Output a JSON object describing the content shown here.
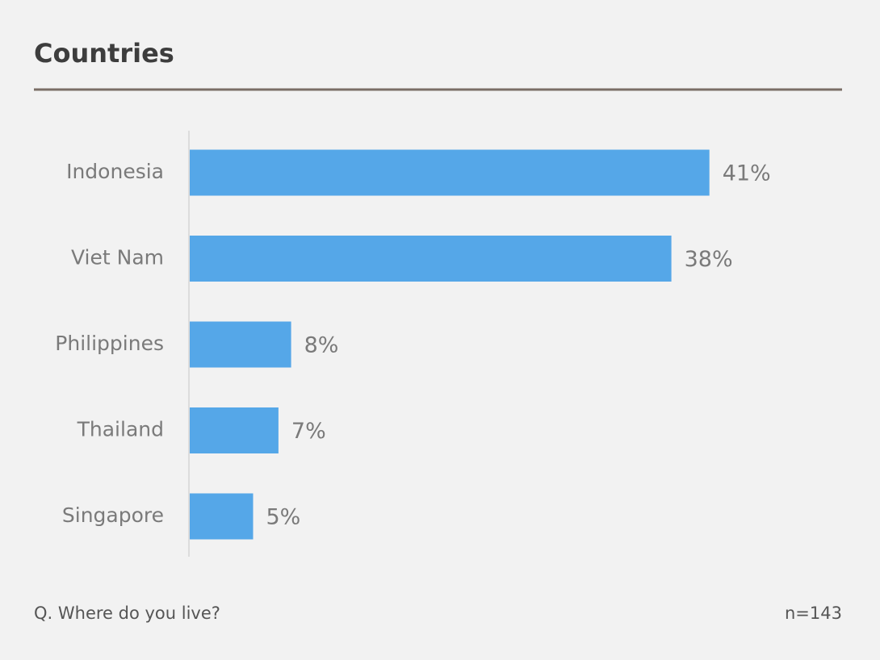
{
  "chart_data": {
    "type": "bar",
    "orientation": "horizontal",
    "title": "Countries",
    "categories": [
      "Indonesia",
      "Viet Nam",
      "Philippines",
      "Thailand",
      "Singapore"
    ],
    "values": [
      41,
      38,
      8,
      7,
      5
    ],
    "value_labels": [
      "41%",
      "38%",
      "8%",
      "7%",
      "5%"
    ],
    "color": "#55a7e8",
    "footnote": "Q. Where do you live?",
    "sample_size": "n=143"
  }
}
